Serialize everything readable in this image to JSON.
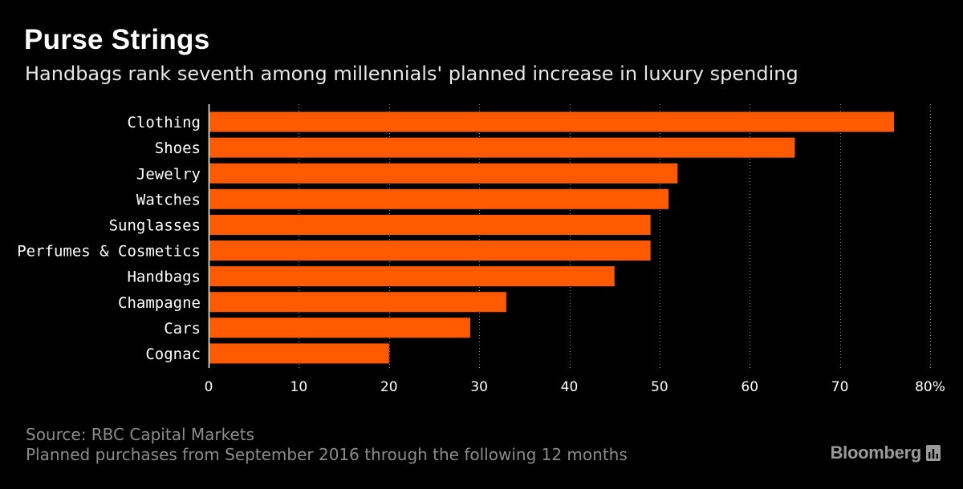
{
  "header": {
    "title": "Purse Strings",
    "subtitle": "Handbags rank seventh among millennials' planned increase in luxury spending"
  },
  "footer": {
    "source": "Source: RBC Capital Markets",
    "note": "Planned purchases from September 2016 through the following 12 months"
  },
  "brand": {
    "name": "Bloomberg",
    "icon": "bloomberg-chart-icon"
  },
  "colors": {
    "bar": "#ff5a00",
    "background": "#000000",
    "grid": "#8a8a8a"
  },
  "chart_data": {
    "type": "bar",
    "orientation": "horizontal",
    "title": "Purse Strings",
    "subtitle": "Handbags rank seventh among millennials' planned increase in luxury spending",
    "categories": [
      "Clothing",
      "Shoes",
      "Jewelry",
      "Watches",
      "Sunglasses",
      "Perfumes & Cosmetics",
      "Handbags",
      "Champagne",
      "Cars",
      "Cognac"
    ],
    "values": [
      76,
      65,
      52,
      51,
      49,
      49,
      45,
      33,
      29,
      20
    ],
    "xlim": [
      0,
      80
    ],
    "xticks": [
      0,
      10,
      20,
      30,
      40,
      50,
      60,
      70,
      80
    ],
    "xtick_labels": [
      "0",
      "10",
      "20",
      "30",
      "40",
      "50",
      "60",
      "70",
      "80%"
    ],
    "xlabel": "",
    "ylabel": "",
    "grid": "vertical dotted",
    "legend": "none"
  }
}
